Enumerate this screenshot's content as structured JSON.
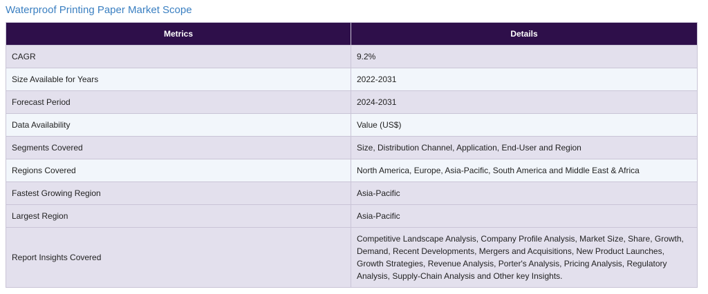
{
  "page": {
    "title": "Waterproof Printing Paper Market Scope"
  },
  "table": {
    "headers": [
      "Metrics",
      "Details"
    ],
    "rows": [
      {
        "metric": "CAGR",
        "detail": "9.2%"
      },
      {
        "metric": "Size Available for Years",
        "detail": "2022-2031"
      },
      {
        "metric": "Forecast Period",
        "detail": "2024-2031"
      },
      {
        "metric": "Data Availability",
        "detail": "Value (US$)"
      },
      {
        "metric": "Segments Covered",
        "detail": "Size, Distribution Channel, Application, End-User and Region"
      },
      {
        "metric": "Regions Covered",
        "detail": "North America, Europe, Asia-Pacific, South America and Middle East & Africa"
      },
      {
        "metric": "Fastest Growing Region",
        "detail": "Asia-Pacific"
      },
      {
        "metric": "Largest Region",
        "detail": "Asia-Pacific"
      },
      {
        "metric": "Report Insights Covered",
        "detail": "Competitive Landscape Analysis, Company Profile Analysis, Market Size, Share, Growth, Demand, Recent Developments, Mergers and Acquisitions, New Product Launches, Growth Strategies, Revenue Analysis, Porter's Analysis, Pricing Analysis, Regulatory Analysis, Supply-Chain Analysis and Other key Insights."
      }
    ]
  },
  "colors": {
    "title": "#3a7fc1",
    "header_bg": "#2e0f4a",
    "row_odd": "#e3e0ed",
    "row_even": "#f2f6fb"
  }
}
